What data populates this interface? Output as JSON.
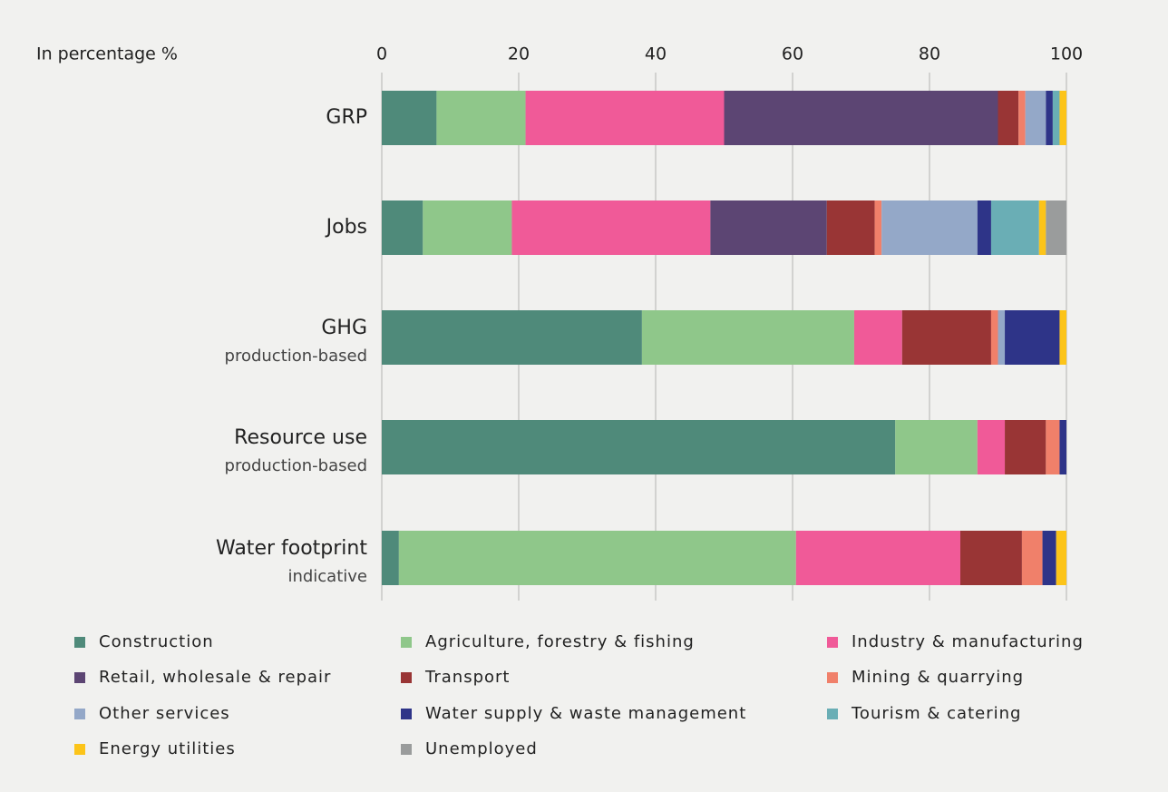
{
  "chart_data": {
    "type": "stacked_barh",
    "x_axis_title": "In percentage %",
    "categories": [
      "GRP",
      "Jobs",
      "GHG",
      "Resource use",
      "Water footprint"
    ],
    "category_subtitles": [
      null,
      null,
      "production-based",
      "production-based",
      "indicative"
    ],
    "xlim": [
      0,
      100
    ],
    "xticks": [
      0,
      20,
      40,
      60,
      80,
      100
    ],
    "grid": true,
    "series": [
      {
        "name": "Construction",
        "color": "#4f8a7a",
        "values": [
          8,
          6,
          38,
          75,
          2.5
        ]
      },
      {
        "name": "Agriculture, forestry & fishing",
        "color": "#8fc78a",
        "values": [
          13,
          13,
          31,
          12,
          58
        ]
      },
      {
        "name": "Industry & manufacturing",
        "color": "#f05a98",
        "values": [
          29,
          29,
          7,
          4,
          24
        ]
      },
      {
        "name": "Retail, wholesale & repair",
        "color": "#5c4573",
        "values": [
          40,
          17,
          0,
          0,
          0
        ]
      },
      {
        "name": "Transport",
        "color": "#993535",
        "values": [
          3,
          7,
          13,
          6,
          9
        ]
      },
      {
        "name": "Mining & quarrying",
        "color": "#f0806a",
        "values": [
          1,
          1,
          1,
          2,
          3
        ]
      },
      {
        "name": "Other services",
        "color": "#94a8c8",
        "values": [
          3,
          14,
          1,
          0,
          0
        ]
      },
      {
        "name": "Water supply & waste management",
        "color": "#2e3488",
        "values": [
          1,
          2,
          8,
          1,
          2
        ]
      },
      {
        "name": "Tourism & catering",
        "color": "#6aaeb5",
        "values": [
          1,
          7,
          0,
          0,
          0
        ]
      },
      {
        "name": "Energy utilities",
        "color": "#fcc419",
        "values": [
          1,
          1,
          1,
          0,
          1.5
        ]
      },
      {
        "name": "Unemployed",
        "color": "#9a9c9c",
        "values": [
          0,
          3,
          0,
          0,
          0
        ]
      }
    ]
  }
}
